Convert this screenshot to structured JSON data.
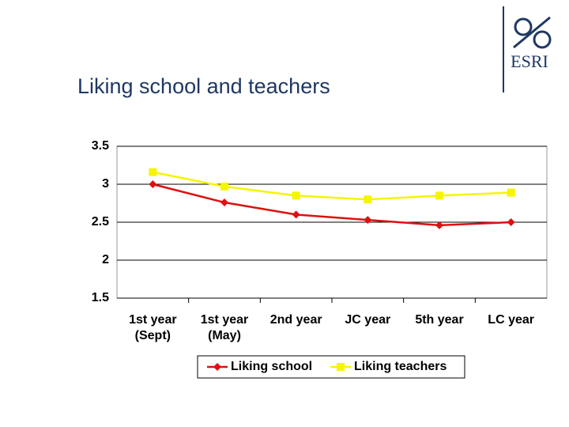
{
  "logo": "ESRI",
  "chart_data": {
    "type": "line",
    "title": "Liking school and teachers",
    "categories": [
      "1st year (Sept)",
      "1st year (May)",
      "2nd year",
      "JC year",
      "5th year",
      "LC year"
    ],
    "series": [
      {
        "name": "Liking school",
        "color": "#dd1111",
        "marker": "diamond",
        "values": [
          3.0,
          2.76,
          2.6,
          2.53,
          2.46,
          2.5
        ]
      },
      {
        "name": "Liking teachers",
        "color": "#f5f500",
        "marker": "square",
        "values": [
          3.16,
          2.97,
          2.85,
          2.8,
          2.85,
          2.89
        ]
      }
    ],
    "ylim": [
      1.5,
      3.5
    ],
    "yticks": [
      3.5,
      3,
      2.5,
      2,
      1.5
    ],
    "grid": true,
    "legend": "bottom"
  }
}
